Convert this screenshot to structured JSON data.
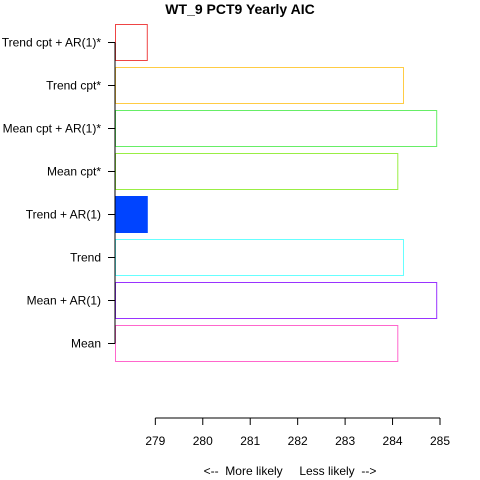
{
  "chart_data": {
    "type": "bar",
    "orientation": "horizontal",
    "title": "WT_9 PCT9 Yearly AIC",
    "xlabel": "<--  More likely     Less likely  -->",
    "categories": [
      "Mean",
      "Mean + AR(1)",
      "Trend",
      "Trend + AR(1)",
      "Mean cpt*",
      "Mean cpt + AR(1)*",
      "Trend cpt*",
      "Trend cpt + AR(1)*"
    ],
    "values": [
      284.1,
      284.92,
      284.22,
      278.82,
      284.1,
      284.92,
      284.22,
      278.82
    ],
    "colors": [
      "#ff66cc",
      "#9933ff",
      "#66ffff",
      "#0044ff",
      "#99ee44",
      "#66ee66",
      "#ffcc44",
      "#ee4444"
    ],
    "filled": [
      false,
      false,
      false,
      true,
      false,
      false,
      false,
      false
    ],
    "xlim": [
      278.15,
      285.0
    ],
    "xticks": [
      "279",
      "280",
      "281",
      "282",
      "283",
      "284",
      "285"
    ],
    "grid": false,
    "legend": "none"
  }
}
